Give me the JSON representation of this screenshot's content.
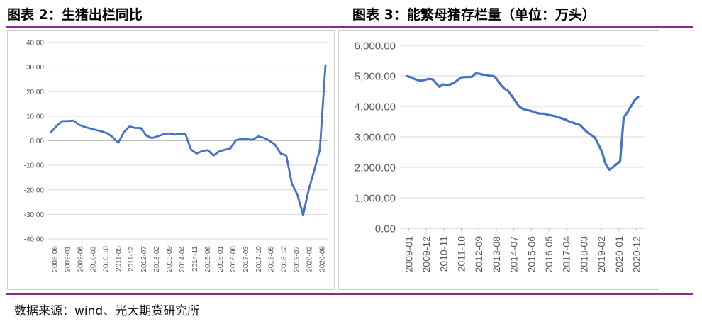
{
  "titles": {
    "left": "图表 2：生猪出栏同比",
    "right": "图表 3：能繁母猪存栏量（单位：万头）"
  },
  "source": "数据来源：wind、光大期货研究所",
  "colors": {
    "line": "#4472c4",
    "accent": "#8b2a8e",
    "grid": "#d9d9d9"
  },
  "chart_data": [
    {
      "type": "line",
      "title": "",
      "xlabel": "",
      "ylabel": "",
      "ylim": [
        -40,
        40
      ],
      "grid": true,
      "yticks": [
        "40.00",
        "30.00",
        "20.00",
        "10.00",
        "0.00",
        "-10.00",
        "-20.00",
        "-30.00",
        "-40.00"
      ],
      "xticks": [
        "2008-06",
        "2009-01",
        "2009-08",
        "2010-03",
        "2010-10",
        "2011-05",
        "2011-12",
        "2012-07",
        "2013-02",
        "2013-09",
        "2014-04",
        "2014-11",
        "2015-06",
        "2016-01",
        "2016-08",
        "2017-03",
        "2017-10",
        "2018-05",
        "2018-12",
        "2019-07",
        "2020-02",
        "2020-09"
      ],
      "series": [
        {
          "values": [
            3.5,
            6,
            8,
            8,
            8.2,
            6.5,
            5.6,
            5,
            4.4,
            3.8,
            3.1,
            1.5,
            -0.8,
            3.5,
            5.8,
            5.2,
            5.2,
            2.1,
            1.1,
            1.8,
            2.6,
            3,
            2.5,
            2.7,
            2.7,
            -3.6,
            -5.2,
            -4.2,
            -3.8,
            -6,
            -4.4,
            -3.7,
            -3.2,
            0.2,
            0.8,
            0.6,
            0.4,
            1.8,
            1.2,
            0,
            -1.6,
            -5.2,
            -6,
            -17.5,
            -22,
            -30.3,
            -20,
            -12,
            -3.5,
            30.8
          ]
        }
      ]
    },
    {
      "type": "line",
      "title": "",
      "xlabel": "",
      "ylabel": "",
      "ylim": [
        0,
        6000
      ],
      "grid": true,
      "yticks": [
        "6,000.00",
        "5,000.00",
        "4,000.00",
        "3,000.00",
        "2,000.00",
        "1,000.00",
        "0.00"
      ],
      "xticks": [
        "2009-01",
        "2009-12",
        "2010-11",
        "2011-10",
        "2012-09",
        "2013-08",
        "2014-07",
        "2015-06",
        "2016-05",
        "2017-04",
        "2018-03",
        "2019-02",
        "2020-01",
        "2020-12"
      ],
      "series": [
        {
          "values": [
            4990,
            4960,
            4900,
            4860,
            4840,
            4870,
            4900,
            4890,
            4760,
            4640,
            4720,
            4700,
            4720,
            4770,
            4860,
            4950,
            4960,
            4960,
            4970,
            5080,
            5070,
            5040,
            5030,
            5000,
            4990,
            4880,
            4700,
            4580,
            4500,
            4350,
            4170,
            4000,
            3920,
            3880,
            3860,
            3820,
            3780,
            3760,
            3760,
            3720,
            3700,
            3680,
            3640,
            3600,
            3560,
            3500,
            3460,
            3420,
            3380,
            3250,
            3140,
            3060,
            2980,
            2750,
            2500,
            2100,
            1920,
            2000,
            2100,
            2190,
            3640,
            3800,
            4000,
            4200,
            4310
          ]
        }
      ]
    }
  ]
}
